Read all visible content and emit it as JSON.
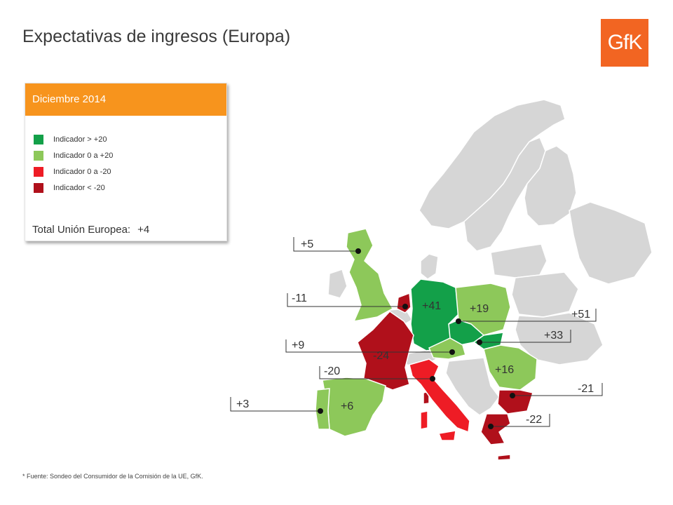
{
  "title": "Expectativas de ingresos (Europa)",
  "logo_text": "GfK",
  "legend": {
    "header": "Diciembre 2014",
    "items": [
      {
        "label": "Indicador > +20",
        "color": "#13a049"
      },
      {
        "label": "Indicador 0 a +20",
        "color": "#8dc85a"
      },
      {
        "label": "Indicador 0 a -20",
        "color": "#ee1c25"
      },
      {
        "label": "Indicador < -20",
        "color": "#b0101b"
      }
    ],
    "total_label": "Total Unión Europea:",
    "total_value": "+4"
  },
  "map_values": {
    "uk": "+5",
    "netherlands": "-11",
    "germany": "+41",
    "poland": "+19",
    "czech_republic": "+51",
    "slovakia": "+33",
    "austria": "+9",
    "france": "-24",
    "italy": "-20",
    "hungary_romania": "+16",
    "bulgaria": "-21",
    "greece": "-22",
    "spain": "+6",
    "portugal": "+3"
  },
  "footnote": "* Fuente:  Sondeo del Consumidor de la Comisión de la UE, GfK."
}
